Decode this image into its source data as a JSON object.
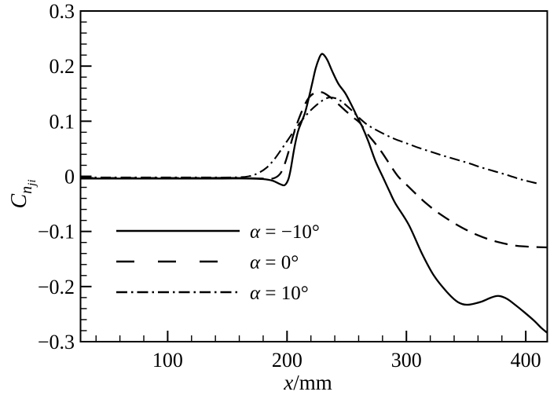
{
  "colors": {
    "foreground": "#000000",
    "background": "#ffffff"
  },
  "chart_data": {
    "type": "line",
    "title": "",
    "xlabel": "x/mm",
    "ylabel": "C_n_ji",
    "xlabel_parts": {
      "italic": "x",
      "normal": "/mm"
    },
    "ylabel_parts": {
      "main": "C",
      "sub": "n",
      "subsub": "ji"
    },
    "xlim": [
      27,
      418
    ],
    "ylim": [
      -0.3,
      0.3
    ],
    "x_minor_step": 20,
    "y_minor_step": 0.02,
    "grid": false,
    "x_major_ticks": [
      {
        "v": 100,
        "label": "100"
      },
      {
        "v": 200,
        "label": "200"
      },
      {
        "v": 300,
        "label": "300"
      },
      {
        "v": 400,
        "label": "400"
      }
    ],
    "y_major_ticks": [
      {
        "v": 0.3,
        "label": "0.3"
      },
      {
        "v": 0.2,
        "label": "0.2"
      },
      {
        "v": 0.1,
        "label": "0.1"
      },
      {
        "v": 0,
        "label": "0"
      },
      {
        "v": -0.1,
        "label": "−0.1"
      },
      {
        "v": -0.2,
        "label": "−0.2"
      },
      {
        "v": -0.3,
        "label": "−0.3"
      }
    ],
    "legend": {
      "position": "inside-lower-left",
      "entries": [
        {
          "symbol": "α",
          "rest": " = −10°",
          "style": "solid"
        },
        {
          "symbol": "α",
          "rest": " = 0°",
          "style": "dashed"
        },
        {
          "symbol": "α",
          "rest": " = 10°",
          "style": "dashdot"
        }
      ]
    },
    "series": [
      {
        "name": "alpha = -10 deg",
        "style": "solid",
        "points": [
          [
            27,
            -0.004
          ],
          [
            70,
            -0.004
          ],
          [
            110,
            -0.004
          ],
          [
            145,
            -0.004
          ],
          [
            168,
            -0.004
          ],
          [
            180,
            -0.005
          ],
          [
            188,
            -0.008
          ],
          [
            194,
            -0.014
          ],
          [
            198,
            -0.016
          ],
          [
            201,
            -0.006
          ],
          [
            203,
            0.012
          ],
          [
            206,
            0.05
          ],
          [
            209,
            0.08
          ],
          [
            212,
            0.098
          ],
          [
            215,
            0.115
          ],
          [
            218,
            0.14
          ],
          [
            221,
            0.168
          ],
          [
            224,
            0.196
          ],
          [
            227,
            0.215
          ],
          [
            229,
            0.222
          ],
          [
            231,
            0.22
          ],
          [
            234,
            0.21
          ],
          [
            238,
            0.19
          ],
          [
            243,
            0.168
          ],
          [
            249,
            0.15
          ],
          [
            255,
            0.125
          ],
          [
            259,
            0.107
          ],
          [
            263,
            0.09
          ],
          [
            268,
            0.064
          ],
          [
            274,
            0.028
          ],
          [
            280,
            0.0
          ],
          [
            286,
            -0.028
          ],
          [
            291,
            -0.05
          ],
          [
            302,
            -0.088
          ],
          [
            313,
            -0.14
          ],
          [
            323,
            -0.18
          ],
          [
            334,
            -0.21
          ],
          [
            343,
            -0.228
          ],
          [
            351,
            -0.233
          ],
          [
            362,
            -0.228
          ],
          [
            371,
            -0.22
          ],
          [
            377,
            -0.217
          ],
          [
            384,
            -0.222
          ],
          [
            391,
            -0.233
          ],
          [
            399,
            -0.247
          ],
          [
            407,
            -0.262
          ],
          [
            413,
            -0.275
          ],
          [
            418,
            -0.284
          ]
        ]
      },
      {
        "name": "alpha = 0 deg",
        "style": "dashed",
        "points": [
          [
            27,
            -0.003
          ],
          [
            80,
            -0.003
          ],
          [
            125,
            -0.003
          ],
          [
            160,
            -0.003
          ],
          [
            178,
            -0.004
          ],
          [
            188,
            -0.004
          ],
          [
            194,
            0.004
          ],
          [
            198,
            0.022
          ],
          [
            202,
            0.05
          ],
          [
            206,
            0.08
          ],
          [
            210,
            0.105
          ],
          [
            214,
            0.126
          ],
          [
            218,
            0.142
          ],
          [
            222,
            0.15
          ],
          [
            226,
            0.153
          ],
          [
            230,
            0.152
          ],
          [
            234,
            0.147
          ],
          [
            239,
            0.139
          ],
          [
            244,
            0.129
          ],
          [
            250,
            0.117
          ],
          [
            256,
            0.106
          ],
          [
            261,
            0.097
          ],
          [
            267,
            0.078
          ],
          [
            273,
            0.062
          ],
          [
            279,
            0.045
          ],
          [
            286,
            0.022
          ],
          [
            293,
            0.0
          ],
          [
            300,
            -0.015
          ],
          [
            308,
            -0.032
          ],
          [
            316,
            -0.048
          ],
          [
            324,
            -0.062
          ],
          [
            332,
            -0.074
          ],
          [
            340,
            -0.085
          ],
          [
            350,
            -0.097
          ],
          [
            360,
            -0.107
          ],
          [
            370,
            -0.115
          ],
          [
            380,
            -0.121
          ],
          [
            392,
            -0.126
          ],
          [
            405,
            -0.128
          ],
          [
            418,
            -0.129
          ]
        ]
      },
      {
        "name": "alpha = 10 deg",
        "style": "dashdot",
        "points": [
          [
            27,
            -0.002
          ],
          [
            80,
            -0.002
          ],
          [
            125,
            -0.002
          ],
          [
            155,
            -0.002
          ],
          [
            168,
            0.0
          ],
          [
            176,
            0.006
          ],
          [
            183,
            0.016
          ],
          [
            189,
            0.03
          ],
          [
            195,
            0.048
          ],
          [
            201,
            0.067
          ],
          [
            207,
            0.086
          ],
          [
            213,
            0.103
          ],
          [
            219,
            0.118
          ],
          [
            225,
            0.13
          ],
          [
            230,
            0.138
          ],
          [
            235,
            0.143
          ],
          [
            240,
            0.142
          ],
          [
            245,
            0.137
          ],
          [
            250,
            0.128
          ],
          [
            255,
            0.118
          ],
          [
            261,
            0.105
          ],
          [
            267,
            0.094
          ],
          [
            274,
            0.085
          ],
          [
            282,
            0.076
          ],
          [
            290,
            0.068
          ],
          [
            300,
            0.06
          ],
          [
            310,
            0.052
          ],
          [
            320,
            0.045
          ],
          [
            330,
            0.038
          ],
          [
            341,
            0.031
          ],
          [
            352,
            0.024
          ],
          [
            363,
            0.016
          ],
          [
            374,
            0.009
          ],
          [
            385,
            0.002
          ],
          [
            395,
            -0.005
          ],
          [
            404,
            -0.01
          ],
          [
            412,
            -0.014
          ]
        ]
      }
    ]
  }
}
